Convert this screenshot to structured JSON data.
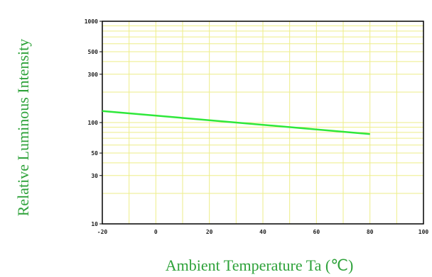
{
  "chart_data": {
    "type": "line",
    "xlabel": "Ambient Temperature Ta (℃)",
    "ylabel": "Relative Luminous Intensity",
    "xlim": [
      -20,
      100
    ],
    "ylim": [
      10,
      1000
    ],
    "y_scale": "log",
    "x_ticks": [
      "-20",
      "0",
      "20",
      "40",
      "60",
      "80",
      "100"
    ],
    "y_ticks": [
      {
        "value": 1000,
        "label": "1000"
      },
      {
        "value": 500,
        "label": "500"
      },
      {
        "value": 300,
        "label": "300"
      },
      {
        "value": 100,
        "label": "100"
      },
      {
        "value": 50,
        "label": "50"
      },
      {
        "value": 30,
        "label": "30"
      },
      {
        "value": 10,
        "label": "10"
      }
    ],
    "grid": true,
    "series": [
      {
        "x": [
          -20,
          80
        ],
        "y": [
          130,
          77
        ]
      }
    ],
    "colors": {
      "line": "#2ee83a",
      "grid": "#eeee88",
      "axis": "#000000",
      "label": "#2ea23a"
    }
  }
}
